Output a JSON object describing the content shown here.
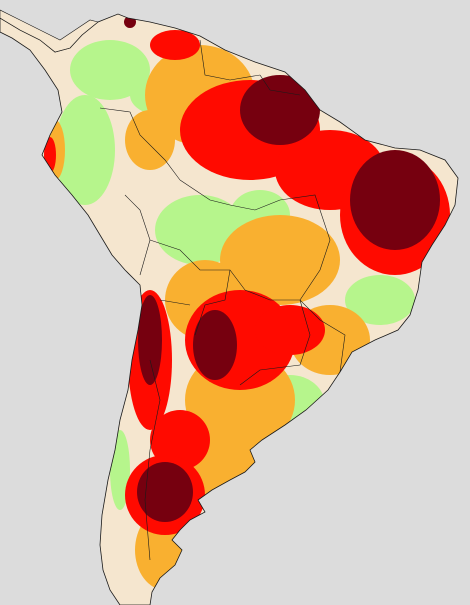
{
  "map": {
    "region": "South America",
    "background_color": "#dcdcdc",
    "land_base_color": "#f5e6cf",
    "category_colors": {
      "lowest": "#f5e6cf",
      "low": "#b6f58c",
      "moderate": "#f9b030",
      "high": "#ff0a00",
      "very_high": "#76000f"
    },
    "border_color": "#1a1a1a"
  }
}
